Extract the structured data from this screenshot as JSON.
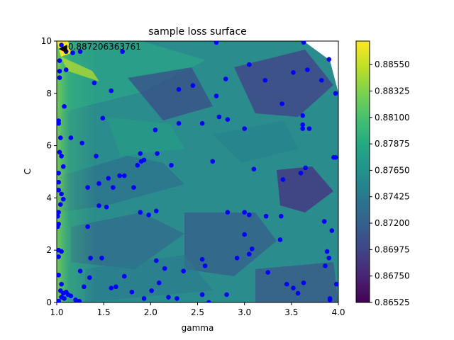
{
  "chart_data": {
    "type": "scatter",
    "title": "sample loss surface",
    "xlabel": "gamma",
    "ylabel": "C",
    "xlim": [
      1.0,
      4.0
    ],
    "ylim": [
      0,
      10
    ],
    "x_ticks": [
      "1.0",
      "1.5",
      "2.0",
      "2.5",
      "3.0",
      "3.5",
      "4.0"
    ],
    "y_ticks": [
      "0",
      "2",
      "4",
      "6",
      "8",
      "10"
    ],
    "background": "filled loss surface (viridis colormap) interpolated from sampled points",
    "colormap": "viridis",
    "colorbar": {
      "range": [
        0.86525,
        0.8875
      ],
      "ticks": [
        "0.86525",
        "0.86750",
        "0.86975",
        "0.87200",
        "0.87425",
        "0.87650",
        "0.87875",
        "0.88100",
        "0.88325",
        "0.88550"
      ]
    },
    "annotation": {
      "text": "0.887206363761",
      "x": 1.02,
      "y": 9.7,
      "arrow_to": [
        1.02,
        9.7
      ],
      "text_at": [
        1.12,
        9.75
      ]
    },
    "point_color": "#0000ff",
    "series": [
      {
        "points": [
          [
            1.05,
            9.85
          ],
          [
            1.1,
            9.6
          ],
          [
            1.17,
            9.55
          ],
          [
            1.25,
            9.6
          ],
          [
            1.7,
            9.6
          ],
          [
            2.7,
            9.95
          ],
          [
            3.63,
            9.95
          ],
          [
            1.03,
            9.25
          ],
          [
            1.1,
            8.9
          ],
          [
            1.03,
            8.6
          ],
          [
            1.03,
            8.85
          ],
          [
            1.4,
            8.4
          ],
          [
            1.58,
            8.1
          ],
          [
            3.9,
            9.3
          ],
          [
            3.05,
            9.1
          ],
          [
            3.52,
            8.8
          ],
          [
            3.67,
            8.9
          ],
          [
            3.22,
            8.5
          ],
          [
            3.4,
            7.6
          ],
          [
            3.82,
            8.5
          ],
          [
            2.8,
            8.55
          ],
          [
            2.45,
            8.3
          ],
          [
            2.3,
            8.15
          ],
          [
            2.7,
            7.9
          ],
          [
            3.97,
            8.0
          ],
          [
            1.08,
            7.5
          ],
          [
            1.49,
            7.05
          ],
          [
            2.73,
            7.1
          ],
          [
            2.82,
            7.0
          ],
          [
            2.55,
            6.85
          ],
          [
            2.3,
            6.85
          ],
          [
            3.0,
            6.65
          ],
          [
            3.62,
            6.8
          ],
          [
            3.62,
            6.65
          ],
          [
            3.69,
            6.65
          ],
          [
            3.62,
            7.15
          ],
          [
            2.05,
            6.6
          ],
          [
            1.02,
            6.95
          ],
          [
            1.02,
            6.85
          ],
          [
            1.04,
            6.3
          ],
          [
            1.15,
            6.3
          ],
          [
            1.27,
            6.1
          ],
          [
            1.03,
            5.75
          ],
          [
            1.05,
            5.6
          ],
          [
            1.42,
            5.6
          ],
          [
            1.89,
            5.7
          ],
          [
            2.07,
            5.7
          ],
          [
            1.9,
            5.4
          ],
          [
            1.93,
            5.45
          ],
          [
            1.86,
            5.25
          ],
          [
            2.22,
            5.25
          ],
          [
            2.66,
            5.4
          ],
          [
            3.1,
            5.1
          ],
          [
            3.65,
            5.15
          ],
          [
            3.6,
            4.95
          ],
          [
            3.95,
            5.55
          ],
          [
            3.97,
            5.55
          ],
          [
            1.07,
            5.2
          ],
          [
            1.02,
            4.95
          ],
          [
            1.67,
            4.85
          ],
          [
            1.72,
            4.85
          ],
          [
            1.55,
            4.75
          ],
          [
            1.45,
            4.55
          ],
          [
            1.6,
            4.4
          ],
          [
            1.82,
            4.4
          ],
          [
            1.33,
            4.4
          ],
          [
            3.41,
            4.7
          ],
          [
            1.02,
            4.6
          ],
          [
            1.02,
            4.3
          ],
          [
            1.05,
            4.15
          ],
          [
            1.07,
            3.95
          ],
          [
            1.04,
            3.75
          ],
          [
            1.02,
            3.45
          ],
          [
            1.45,
            3.7
          ],
          [
            1.53,
            3.65
          ],
          [
            1.89,
            3.45
          ],
          [
            1.98,
            3.35
          ],
          [
            2.06,
            3.5
          ],
          [
            2.82,
            3.45
          ],
          [
            3.0,
            3.45
          ],
          [
            3.05,
            3.35
          ],
          [
            3.23,
            3.3
          ],
          [
            3.39,
            3.3
          ],
          [
            3.85,
            3.1
          ],
          [
            3.93,
            2.75
          ],
          [
            1.01,
            3.3
          ],
          [
            1.02,
            3.0
          ],
          [
            1.01,
            2.9
          ],
          [
            1.33,
            2.9
          ],
          [
            3.0,
            2.6
          ],
          [
            3.38,
            2.4
          ],
          [
            1.02,
            2.0
          ],
          [
            1.05,
            1.95
          ],
          [
            1.02,
            1.75
          ],
          [
            3.08,
            2.05
          ],
          [
            3.05,
            1.85
          ],
          [
            3.88,
            1.95
          ],
          [
            1.36,
            1.7
          ],
          [
            1.48,
            1.7
          ],
          [
            2.06,
            1.6
          ],
          [
            2.55,
            1.65
          ],
          [
            2.58,
            1.4
          ],
          [
            2.92,
            1.7
          ],
          [
            3.9,
            1.7
          ],
          [
            2.15,
            1.3
          ],
          [
            2.35,
            1.2
          ],
          [
            1.25,
            1.2
          ],
          [
            3.25,
            1.15
          ],
          [
            3.86,
            1.4
          ],
          [
            1.02,
            1.05
          ],
          [
            1.05,
            0.7
          ],
          [
            1.04,
            0.45
          ],
          [
            1.07,
            0.35
          ],
          [
            1.1,
            0.4
          ],
          [
            1.12,
            0.3
          ],
          [
            1.05,
            0.2
          ],
          [
            1.08,
            0.15
          ],
          [
            1.15,
            0.25
          ],
          [
            1.02,
            0.05
          ],
          [
            1.2,
            0.1
          ],
          [
            1.24,
            0.05
          ],
          [
            1.35,
            0.95
          ],
          [
            1.29,
            0.6
          ],
          [
            1.72,
            1.0
          ],
          [
            1.58,
            0.55
          ],
          [
            1.63,
            0.6
          ],
          [
            1.8,
            0.4
          ],
          [
            1.93,
            0.15
          ],
          [
            2.01,
            0.45
          ],
          [
            2.09,
            0.75
          ],
          [
            2.19,
            0.2
          ],
          [
            2.28,
            0.15
          ],
          [
            2.55,
            0.3
          ],
          [
            2.55,
            0.3
          ],
          [
            2.81,
            0.3
          ],
          [
            2.62,
            0.0
          ],
          [
            3.45,
            0.7
          ],
          [
            3.52,
            0.55
          ],
          [
            3.57,
            0.35
          ],
          [
            3.63,
            0.75
          ],
          [
            3.91,
            0.15
          ],
          [
            3.91,
            0.1
          ],
          [
            3.98,
            0.7
          ]
        ]
      }
    ]
  }
}
